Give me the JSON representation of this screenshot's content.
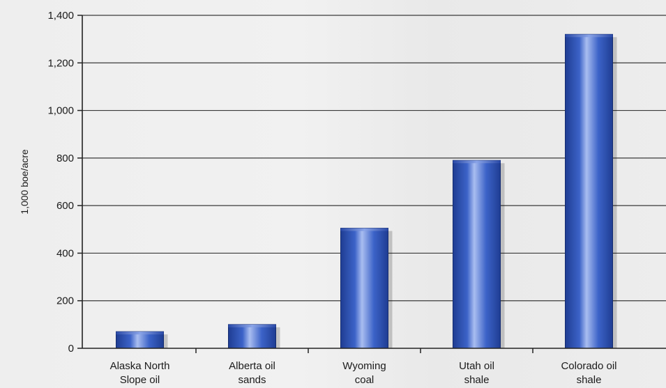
{
  "chart_data": {
    "type": "bar",
    "categories": [
      [
        "Alaska North",
        "Slope oil"
      ],
      [
        "Alberta oil",
        "sands"
      ],
      [
        "Wyoming",
        "coal"
      ],
      [
        "Utah oil",
        "shale"
      ],
      [
        "Colorado oil",
        "shale"
      ]
    ],
    "values": [
      70,
      100,
      505,
      790,
      1320
    ],
    "ylabel": "1,000 boe/acre",
    "xlabel": "",
    "title": "",
    "ylim": [
      0,
      1400
    ],
    "yticks": [
      0,
      200,
      400,
      600,
      800,
      1000,
      1200,
      1400
    ],
    "ytick_labels": [
      "0",
      "200",
      "400",
      "600",
      "800",
      "1,000",
      "1,200",
      "1,400"
    ],
    "grid": true,
    "legend": "none",
    "colors": {
      "bar_dark": "#1f3d93",
      "bar_mid": "#3c63c8",
      "bar_light": "#a9bdf0",
      "gridline": "#3a3a3a",
      "axis": "#222222"
    }
  }
}
